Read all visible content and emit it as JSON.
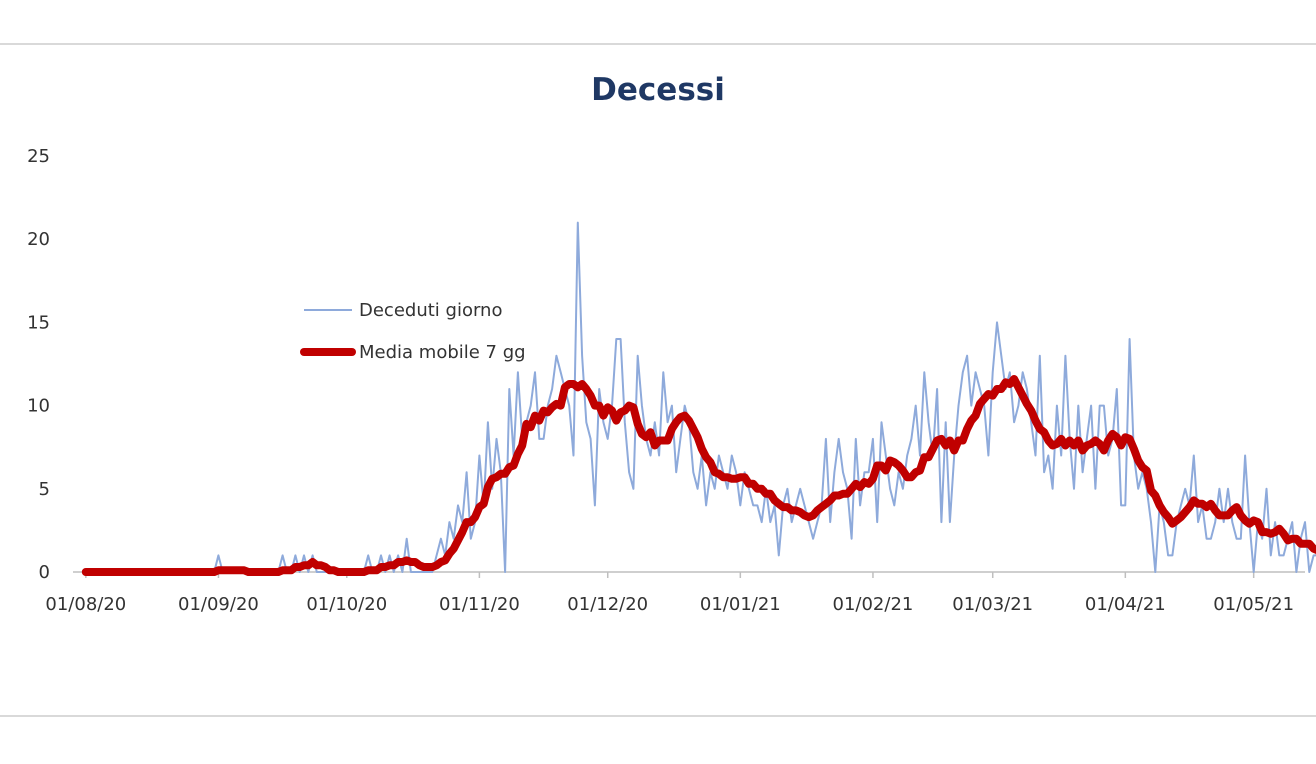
{
  "chart_data": {
    "type": "line",
    "title": "Decessi",
    "xlabel": "",
    "ylabel": "",
    "x_start": "2020-08-01",
    "x_end": "2021-05-12",
    "xlim": [
      "2020-07-29",
      "2021-05-13"
    ],
    "ylim": [
      0,
      25
    ],
    "yticks": [
      0,
      5,
      10,
      15,
      20,
      25
    ],
    "xticks": [
      "01/08/20",
      "01/09/20",
      "01/10/20",
      "01/11/20",
      "01/12/20",
      "01/01/21",
      "01/02/21",
      "01/03/21",
      "01/04/21",
      "01/05/21"
    ],
    "xtick_dates": [
      "2020-08-01",
      "2020-09-01",
      "2020-10-01",
      "2020-11-01",
      "2020-12-01",
      "2021-01-01",
      "2021-02-01",
      "2021-03-01",
      "2021-04-01",
      "2021-05-01"
    ],
    "grid": false,
    "legend_position": "upper-left",
    "series": [
      {
        "name": "Deceduti giorno",
        "color": "#8eaadb",
        "values": [
          0,
          0,
          0,
          0,
          0,
          0,
          0,
          0,
          0,
          0,
          0,
          0,
          0,
          0,
          0,
          0,
          0,
          0,
          0,
          0,
          0,
          0,
          0,
          0,
          0,
          0,
          0,
          0,
          0,
          0,
          0,
          1,
          0,
          0,
          0,
          0,
          0,
          0,
          0,
          0,
          0,
          0,
          0,
          0,
          0,
          0,
          1,
          0,
          0,
          1,
          0,
          1,
          0,
          1,
          0,
          0,
          0,
          0,
          0,
          0,
          0,
          0,
          0,
          0,
          0,
          0,
          1,
          0,
          0,
          1,
          0,
          1,
          0,
          1,
          0,
          2,
          0,
          0,
          0,
          0,
          0,
          0,
          1,
          2,
          1,
          3,
          2,
          4,
          3,
          6,
          2,
          3,
          7,
          4,
          9,
          5,
          8,
          6,
          0,
          11,
          7,
          12,
          8,
          9,
          10,
          12,
          8,
          8,
          10,
          11,
          13,
          12,
          11,
          10,
          7,
          21,
          13,
          9,
          8,
          4,
          11,
          9,
          8,
          10,
          14,
          14,
          9,
          6,
          5,
          13,
          10,
          8,
          7,
          9,
          7,
          12,
          9,
          10,
          6,
          8,
          10,
          9,
          6,
          5,
          7,
          4,
          6,
          5,
          7,
          6,
          5,
          7,
          6,
          4,
          6,
          5,
          4,
          4,
          3,
          5,
          3,
          4,
          1,
          4,
          5,
          3,
          4,
          5,
          4,
          3,
          2,
          3,
          4,
          8,
          3,
          6,
          8,
          6,
          5,
          2,
          8,
          4,
          6,
          6,
          8,
          3,
          9,
          7,
          5,
          4,
          6,
          5,
          7,
          8,
          10,
          7,
          12,
          9,
          7,
          11,
          3,
          9,
          3,
          7,
          10,
          12,
          13,
          10,
          12,
          11,
          10,
          7,
          12,
          15,
          13,
          11,
          12,
          9,
          10,
          12,
          11,
          9,
          7,
          13,
          6,
          7,
          5,
          10,
          7,
          13,
          8,
          5,
          10,
          6,
          8,
          10,
          5,
          10,
          10,
          7,
          8,
          11,
          4,
          4,
          14,
          7,
          5,
          6,
          5,
          3,
          0,
          4,
          3,
          1,
          1,
          3,
          4,
          5,
          4,
          7,
          3,
          4,
          2,
          2,
          3,
          5,
          3,
          5,
          3,
          2,
          2,
          7,
          3,
          0,
          3,
          2,
          5,
          1,
          3,
          1,
          1,
          2,
          3,
          0,
          2,
          3,
          0,
          1,
          1
        ]
      },
      {
        "name": "Media mobile 7 gg",
        "color": "#c00000",
        "values": [
          0,
          0,
          0,
          0,
          0,
          0,
          0,
          0,
          0,
          0,
          0,
          0,
          0,
          0,
          0,
          0,
          0,
          0,
          0,
          0,
          0,
          0,
          0,
          0,
          0,
          0,
          0,
          0,
          0,
          0,
          0,
          0.1,
          0.1,
          0.1,
          0.1,
          0.1,
          0.1,
          0.1,
          0,
          0,
          0,
          0,
          0,
          0,
          0,
          0,
          0.1,
          0.1,
          0.1,
          0.3,
          0.3,
          0.4,
          0.4,
          0.6,
          0.4,
          0.4,
          0.3,
          0.1,
          0.1,
          0,
          0,
          0,
          0,
          0,
          0,
          0,
          0.1,
          0.1,
          0.1,
          0.3,
          0.3,
          0.4,
          0.4,
          0.6,
          0.6,
          0.7,
          0.6,
          0.6,
          0.4,
          0.3,
          0.3,
          0.3,
          0.4,
          0.6,
          0.7,
          1.1,
          1.4,
          1.9,
          2.4,
          3,
          3,
          3.3,
          3.9,
          4.1,
          5.1,
          5.6,
          5.7,
          5.9,
          5.9,
          6.3,
          6.4,
          7.1,
          7.6,
          8.9,
          8.7,
          9.4,
          9.1,
          9.7,
          9.6,
          9.9,
          10.1,
          10,
          11.1,
          11.3,
          11.3,
          11.1,
          11.3,
          11,
          10.6,
          10,
          10,
          9.4,
          9.9,
          9.7,
          9.1,
          9.6,
          9.7,
          10,
          9.9,
          8.9,
          8.3,
          8.1,
          8.4,
          7.6,
          7.9,
          7.9,
          7.9,
          8.6,
          9,
          9.3,
          9.4,
          9.1,
          8.6,
          8.1,
          7.4,
          6.9,
          6.6,
          6,
          5.9,
          5.7,
          5.7,
          5.6,
          5.6,
          5.7,
          5.7,
          5.3,
          5.3,
          5,
          5,
          4.7,
          4.7,
          4.3,
          4.1,
          3.9,
          3.9,
          3.7,
          3.7,
          3.6,
          3.4,
          3.3,
          3.4,
          3.7,
          3.9,
          4.1,
          4.3,
          4.6,
          4.6,
          4.7,
          4.7,
          5,
          5.3,
          5.1,
          5.4,
          5.3,
          5.6,
          6.4,
          6.4,
          6.1,
          6.7,
          6.6,
          6.4,
          6.1,
          5.7,
          5.7,
          6,
          6.1,
          6.9,
          6.9,
          7.4,
          7.9,
          8,
          7.6,
          7.9,
          7.3,
          7.9,
          7.9,
          8.6,
          9.1,
          9.4,
          10.1,
          10.4,
          10.7,
          10.6,
          11,
          11,
          11.4,
          11.3,
          11.6,
          11.1,
          10.6,
          10.1,
          9.7,
          9.1,
          8.6,
          8.4,
          7.9,
          7.6,
          7.7,
          8,
          7.6,
          7.9,
          7.6,
          7.9,
          7.3,
          7.6,
          7.7,
          7.9,
          7.7,
          7.3,
          7.9,
          8.3,
          8.1,
          7.6,
          8.1,
          8,
          7.4,
          6.7,
          6.3,
          6.1,
          4.9,
          4.6,
          4,
          3.6,
          3.3,
          2.9,
          3.1,
          3.3,
          3.6,
          3.9,
          4.3,
          4.1,
          4.1,
          3.9,
          4.1,
          3.7,
          3.4,
          3.4,
          3.4,
          3.7,
          3.9,
          3.4,
          3.1,
          2.9,
          3.1,
          3,
          2.4,
          2.4,
          2.3,
          2.4,
          2.6,
          2.3,
          1.9,
          2,
          2,
          1.7,
          1.7,
          1.7,
          1.4,
          1.3,
          1,
          1
        ]
      }
    ]
  }
}
